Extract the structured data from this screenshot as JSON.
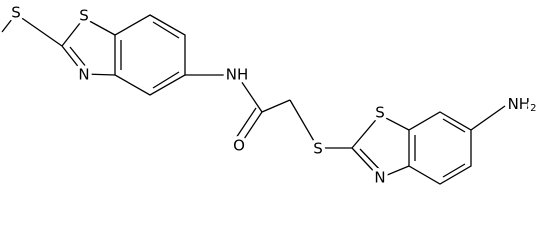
{
  "atoms": [
    {
      "label": "S"
    },
    {
      "label": "S"
    },
    {
      "label": "N"
    },
    {
      "label": "NH"
    },
    {
      "label": "O"
    },
    {
      "label": "S"
    },
    {
      "label": "S"
    },
    {
      "label": "N"
    },
    {
      "label": "NH",
      "subscript": "2"
    }
  ]
}
